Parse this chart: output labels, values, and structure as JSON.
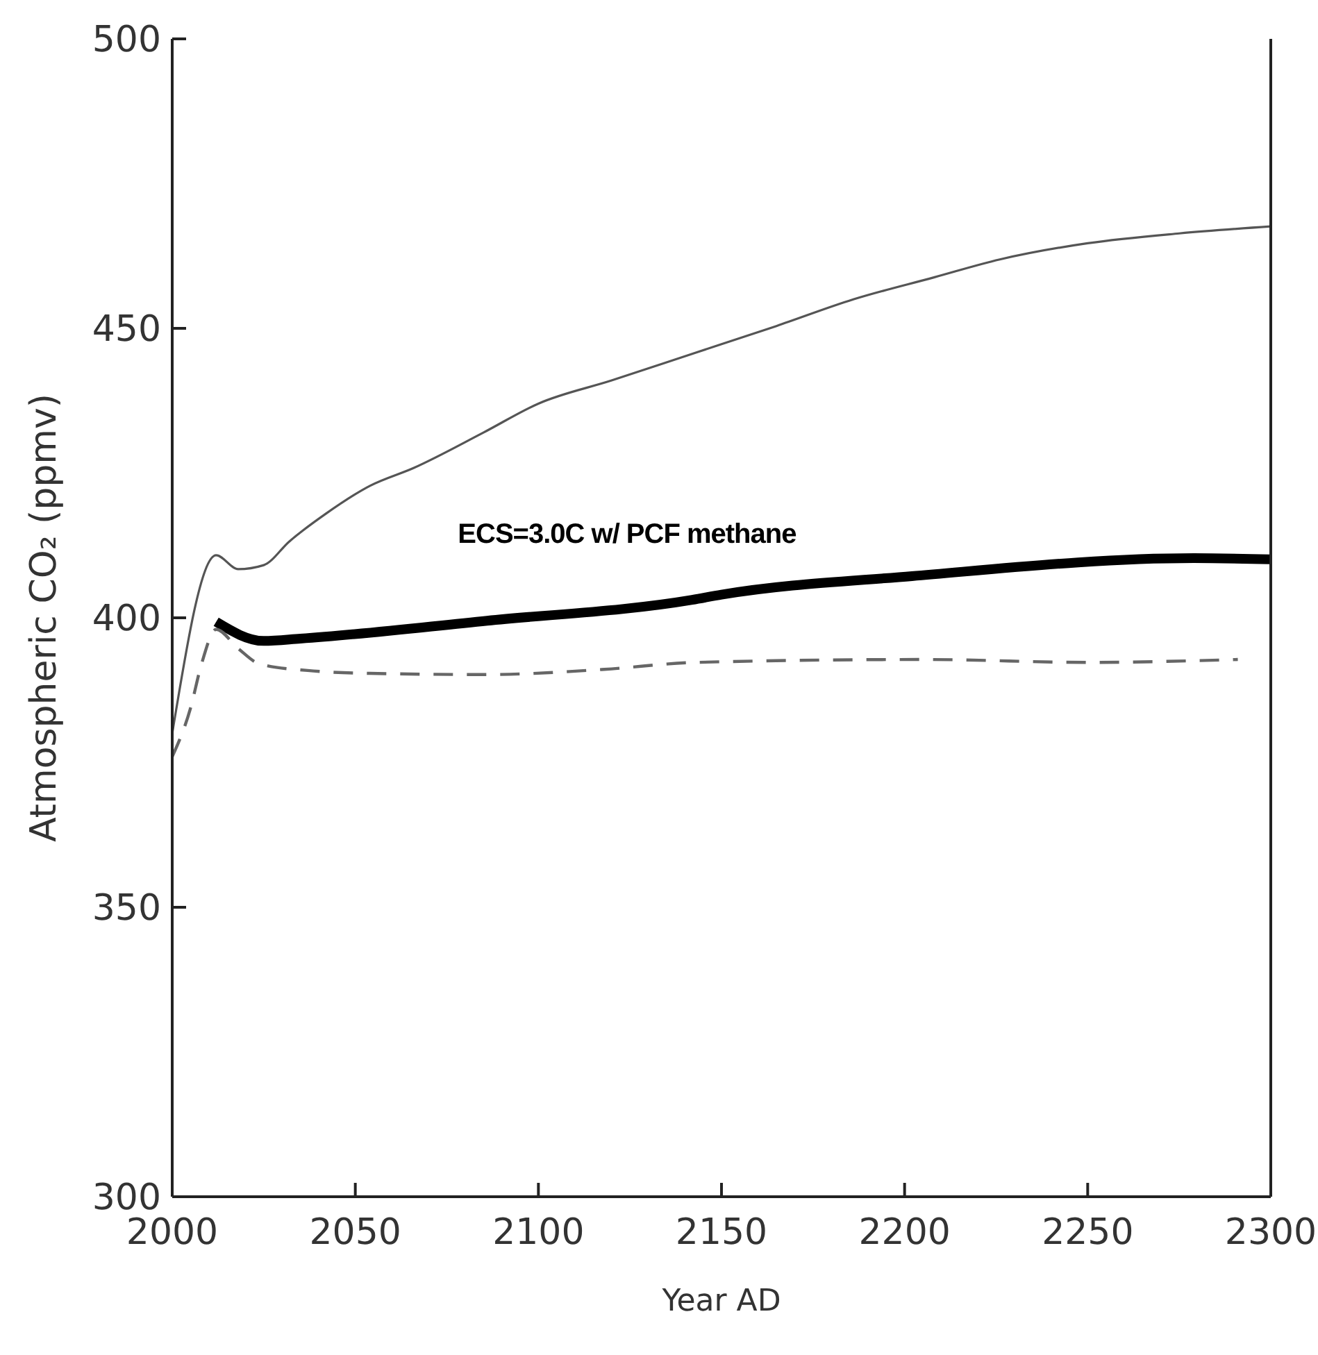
{
  "chart_data": {
    "type": "line",
    "xlabel": "Year AD",
    "ylabel": "Atmospheric CO₂ (ppmv)",
    "xlim": [
      2000,
      2300
    ],
    "ylim": [
      300,
      500
    ],
    "xticks": [
      2000,
      2050,
      2100,
      2150,
      2200,
      2250,
      2300
    ],
    "yticks": [
      300,
      350,
      400,
      450,
      500
    ],
    "grid": false,
    "marker": "none",
    "series": [
      {
        "color": "#555555",
        "line_style": "solid",
        "x": [
          2000,
          2012,
          2018,
          2025,
          2032,
          2042,
          2054,
          2066,
          2085,
          2100,
          2120,
          2142,
          2165,
          2186,
          2208,
          2226,
          2250,
          2275,
          2300
        ],
        "values": [
          380,
          410.8,
          408.4,
          409.1,
          413.2,
          418,
          422.8,
          425.9,
          432,
          437,
          441,
          445.6,
          450.4,
          455,
          458.8,
          461.9,
          464.7,
          466.4,
          467.6
        ]
      },
      {
        "color": "#000000",
        "line_style": "solid",
        "x": [
          2012,
          2025,
          2035,
          2086,
          2142,
          2150,
          2202,
          2279,
          2300
        ],
        "values": [
          399.3,
          396,
          396.4,
          399.5,
          403.1,
          404,
          407.2,
          410.3,
          410.1
        ]
      },
      {
        "color": "#666666",
        "line_style": "dashed",
        "x": [
          2000,
          2005,
          2008,
          2012,
          2018,
          2024,
          2037,
          2054,
          2086,
          2118,
          2143,
          2205,
          2250,
          2291
        ],
        "values": [
          376,
          384.4,
          392,
          398,
          394.7,
          392,
          390.9,
          390.4,
          390.2,
          391.1,
          392.3,
          392.8,
          392.3,
          392.8
        ]
      }
    ],
    "annotations": [
      "ECS=3.0C w/ PCF methane"
    ]
  }
}
